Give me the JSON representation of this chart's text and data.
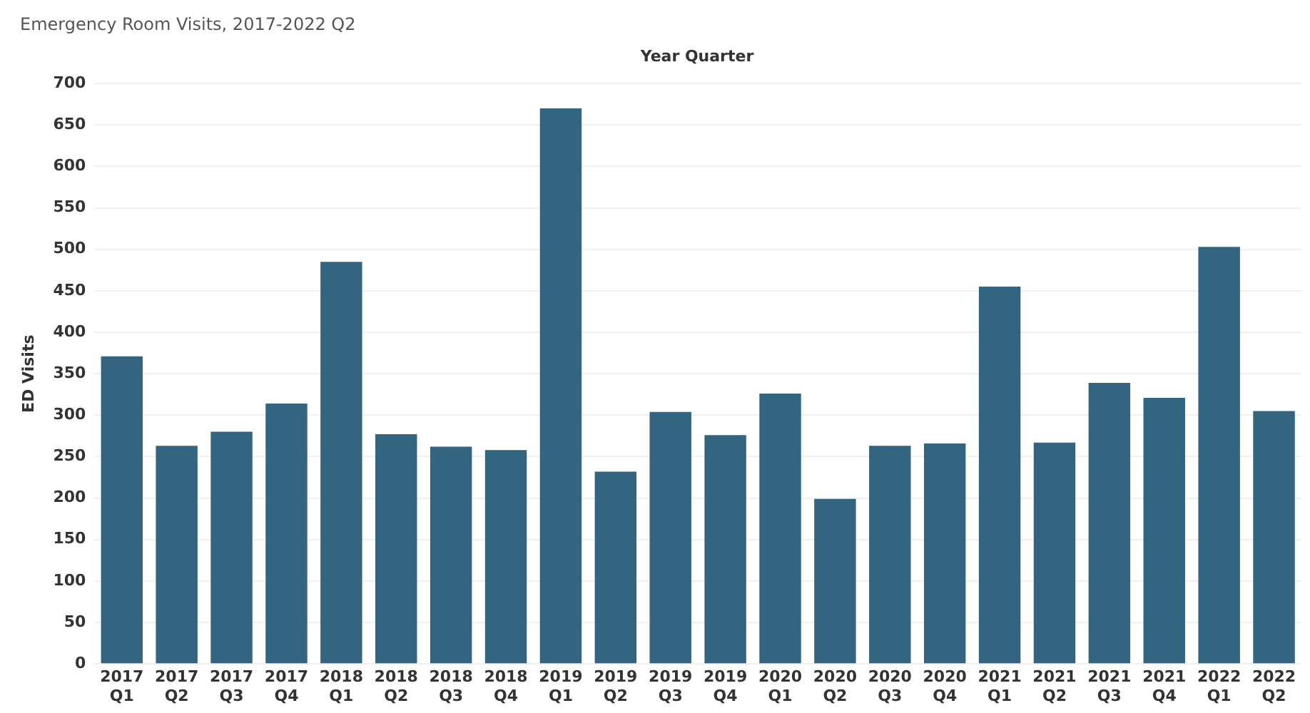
{
  "chart_data": {
    "type": "bar",
    "title": "Emergency Room Visits, 2017-2022 Q2",
    "xlabel": "Year Quarter",
    "ylabel": "ED Visits",
    "categories": [
      "2017 Q1",
      "2017 Q2",
      "2017 Q3",
      "2017 Q4",
      "2018 Q1",
      "2018 Q2",
      "2018 Q3",
      "2018 Q4",
      "2019 Q1",
      "2019 Q2",
      "2019 Q3",
      "2019 Q4",
      "2020 Q1",
      "2020 Q2",
      "2020 Q3",
      "2020 Q4",
      "2021 Q1",
      "2021 Q2",
      "2021 Q3",
      "2021 Q4",
      "2022 Q1",
      "2022 Q2"
    ],
    "values": [
      371,
      263,
      280,
      314,
      485,
      277,
      262,
      258,
      670,
      232,
      304,
      276,
      326,
      199,
      263,
      266,
      455,
      267,
      339,
      321,
      503,
      305
    ],
    "color": "#336580",
    "ylim": [
      0,
      700
    ],
    "yticks": [
      0,
      50,
      100,
      150,
      200,
      250,
      300,
      350,
      400,
      450,
      500,
      550,
      600,
      650,
      700
    ],
    "grid": "y"
  }
}
